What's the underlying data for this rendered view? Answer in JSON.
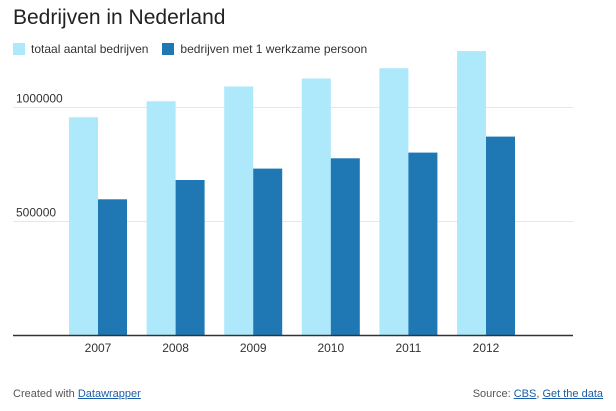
{
  "chart_data": {
    "type": "bar",
    "title": "Bedrijven in Nederland",
    "categories": [
      "2007",
      "2008",
      "2009",
      "2010",
      "2011",
      "2012"
    ],
    "series": [
      {
        "name": "totaal aantal bedrijven",
        "color": "#aee8fb",
        "values": [
          955000,
          1025000,
          1090000,
          1125000,
          1170000,
          1245000
        ]
      },
      {
        "name": "bedrijven met 1 werkzame persoon",
        "color": "#1f78b4",
        "values": [
          595000,
          680000,
          730000,
          775000,
          800000,
          870000
        ]
      }
    ],
    "y_ticks": [
      {
        "value": 500000,
        "label": "500000"
      },
      {
        "value": 1000000,
        "label": "1000000"
      }
    ],
    "ylim": [
      0,
      1250000
    ],
    "xlabel": "",
    "ylabel": "",
    "grid": true,
    "legend_position": "top-left"
  },
  "footer": {
    "created_prefix": "Created with",
    "created_link": "Datawrapper",
    "source_prefix": "Source:",
    "source_link": "CBS",
    "separator": ",",
    "get_data_link": "Get the data"
  }
}
